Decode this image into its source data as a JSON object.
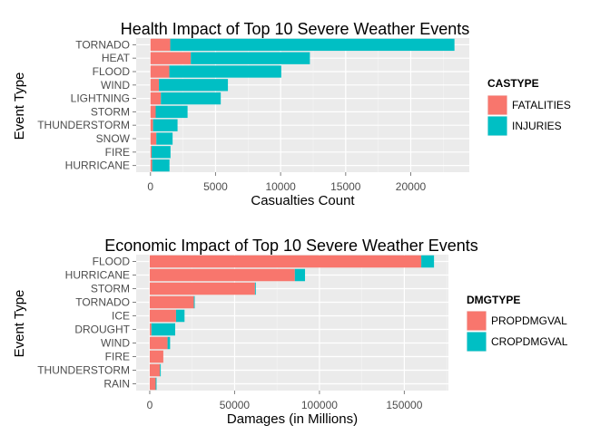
{
  "chart_data": [
    {
      "type": "bar",
      "orientation": "horizontal",
      "stacked": true,
      "title": "Health Impact of Top 10 Severe Weather Events",
      "xlabel": "Casualties Count",
      "ylabel": "Event Type",
      "xlim": [
        -1100,
        24500
      ],
      "xticks": [
        0,
        5000,
        10000,
        15000,
        20000
      ],
      "xtick_labels": [
        "0",
        "5000",
        "10000",
        "15000",
        "20000"
      ],
      "categories": [
        "TORNADO",
        "HEAT",
        "FLOOD",
        "WIND",
        "LIGHTNING",
        "STORM",
        "THUNDERSTORM",
        "SNOW",
        "FIRE",
        "HURRICANE"
      ],
      "legend_title": "CASTYPE",
      "legend_position": "right",
      "series": [
        {
          "name": "FATALITIES",
          "color": "#F8766D",
          "values": [
            1520,
            3100,
            1450,
            650,
            800,
            400,
            200,
            450,
            90,
            130
          ]
        },
        {
          "name": "INJURIES",
          "color": "#00BFC4",
          "values": [
            21840,
            9150,
            8600,
            5300,
            4600,
            2450,
            1880,
            1250,
            1450,
            1330
          ]
        }
      ]
    },
    {
      "type": "bar",
      "orientation": "horizontal",
      "stacked": true,
      "title": "Economic Impact of Top 10 Severe Weather Events",
      "xlabel": "Damages (in Millions)",
      "ylabel": "Event Type",
      "xlim": [
        -8000,
        176000
      ],
      "xticks": [
        0,
        50000,
        100000,
        150000
      ],
      "xtick_labels": [
        "0",
        "50000",
        "100000",
        "150000"
      ],
      "categories": [
        "FLOOD",
        "HURRICANE",
        "STORM",
        "TORNADO",
        "ICE",
        "DROUGHT",
        "WIND",
        "FIRE",
        "THUNDERSTORM",
        "RAIN"
      ],
      "legend_title": "DMGTYPE",
      "legend_position": "right",
      "series": [
        {
          "name": "PROPDMGVAL",
          "color": "#F8766D",
          "values": [
            160000,
            85500,
            62000,
            26000,
            15500,
            1000,
            10500,
            8000,
            6000,
            3500
          ]
        },
        {
          "name": "CROPDMGVAL",
          "color": "#00BFC4",
          "values": [
            7500,
            6000,
            500,
            500,
            5000,
            14000,
            1500,
            0,
            500,
            500
          ]
        }
      ]
    }
  ]
}
